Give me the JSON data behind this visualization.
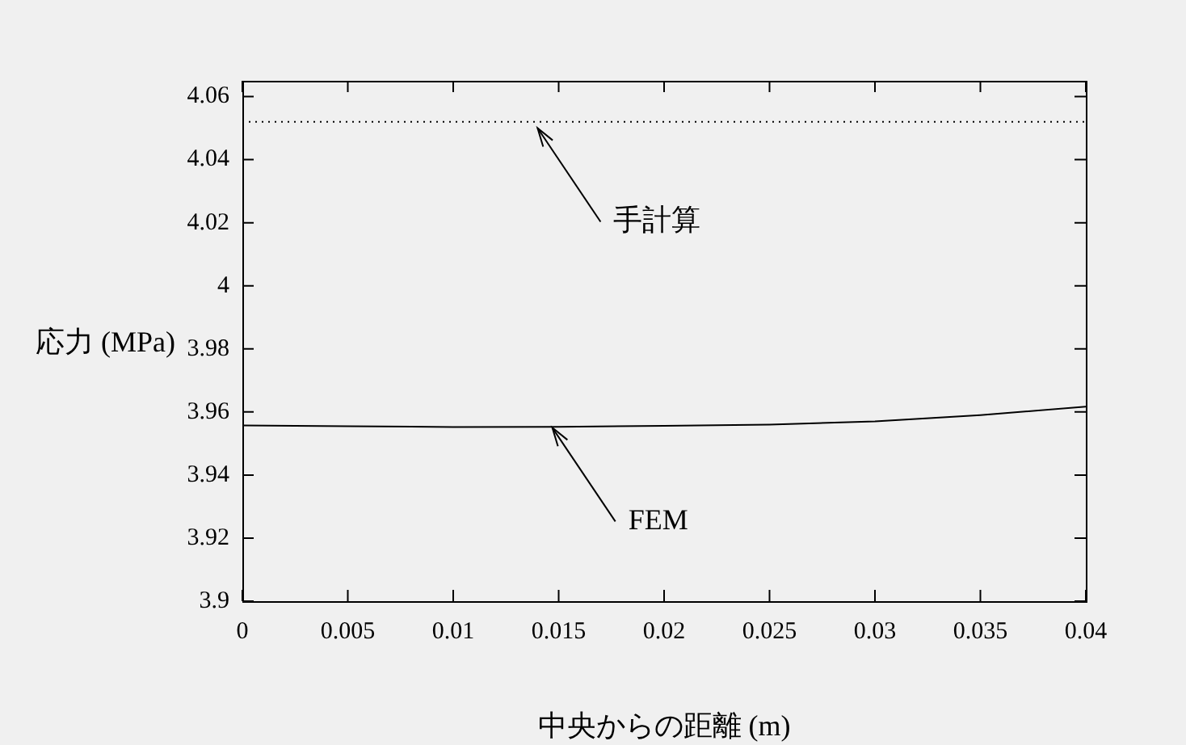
{
  "chart_data": {
    "type": "line",
    "xlabel": "中央からの距離 (m)",
    "ylabel": "応力 (MPa)",
    "x": [
      0,
      0.005,
      0.01,
      0.015,
      0.02,
      0.025,
      0.03,
      0.035,
      0.04
    ],
    "series": [
      {
        "color": "#000000",
        "values": [
          3.9557,
          3.9555,
          3.9552,
          3.9553,
          3.9556,
          3.956,
          3.957,
          3.959,
          3.9617
        ]
      }
    ],
    "xlim": [
      0,
      0.04
    ],
    "xticks": [
      0,
      0.005,
      0.01,
      0.015,
      0.02,
      0.025,
      0.03,
      0.035,
      0.04
    ],
    "ylim": [
      3.9,
      4.065
    ],
    "yticks": [
      3.9,
      3.92,
      3.94,
      3.96,
      3.98,
      4,
      4.02,
      4.04,
      4.06
    ],
    "ref_lines": [
      {
        "axis": "y",
        "value": 4.052,
        "color": "#000000",
        "line_style": "dotted"
      }
    ],
    "annotations": [
      {
        "text": "手計算",
        "x": 0.014,
        "y": 4.05
      },
      {
        "text": "FEM",
        "x": 0.0147,
        "y": 3.955
      }
    ],
    "marker": "none",
    "legend": false
  }
}
